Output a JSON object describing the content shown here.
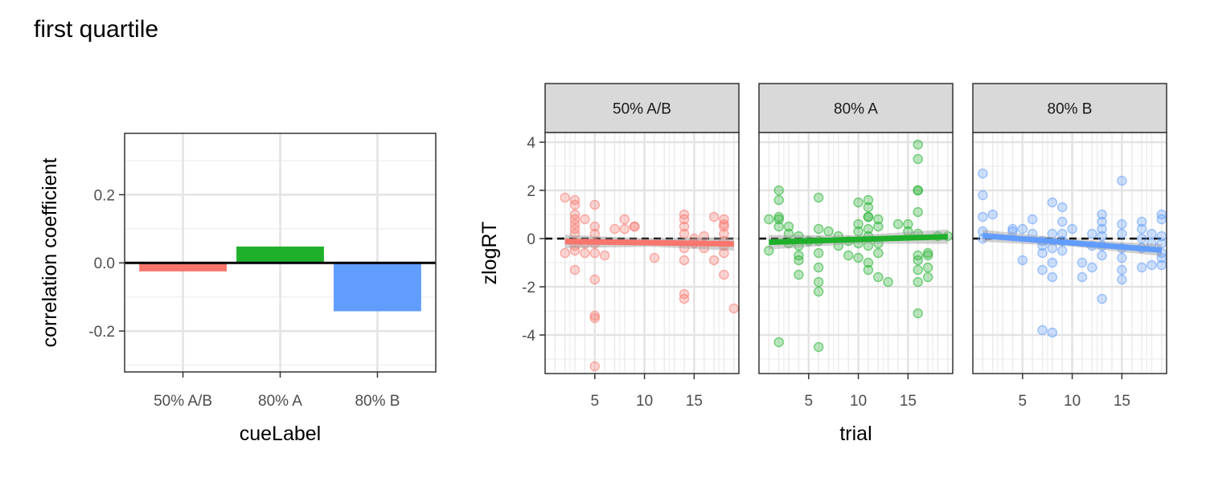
{
  "figure": {
    "title": "first quartile"
  },
  "colors": {
    "red": "#F8766D",
    "green": "#1FB02B",
    "blue": "#619CFF"
  },
  "chart_data": [
    {
      "type": "bar",
      "title": "",
      "xlabel": "cueLabel",
      "ylabel": "correlation coefficient",
      "categories": [
        "50% A/B",
        "80% A",
        "80% B"
      ],
      "values": [
        -0.025,
        0.048,
        -0.142
      ],
      "ylim": [
        -0.32,
        0.38
      ],
      "yticks": [
        -0.2,
        0.0,
        0.2
      ],
      "ytick_labels": [
        "-0.2",
        "0.0",
        "0.2"
      ],
      "grid": true,
      "legend": "none",
      "zero_line": true
    },
    {
      "type": "scatter",
      "xlabel": "trial",
      "ylabel": "zlogRT",
      "xlim": [
        0,
        19.5
      ],
      "ylim": [
        -5.6,
        4.4
      ],
      "xticks": [
        5,
        10,
        15
      ],
      "yticks": [
        -4,
        -2,
        0,
        2,
        4
      ],
      "reference_line_y": 0,
      "grid": true,
      "legend": "none",
      "panels": [
        {
          "label": "50% A/B",
          "fit": {
            "x": [
              2,
              19
            ],
            "y": [
              -0.12,
              -0.22
            ],
            "band": 0.28
          },
          "points": [
            [
              2,
              1.7
            ],
            [
              2,
              -0.6
            ],
            [
              3,
              1.6
            ],
            [
              3,
              1.4
            ],
            [
              3,
              1.0
            ],
            [
              3,
              0.8
            ],
            [
              3,
              0.6
            ],
            [
              3,
              0.4
            ],
            [
              3,
              0.2
            ],
            [
              3,
              -0.3
            ],
            [
              3,
              -0.5
            ],
            [
              3,
              -1.3
            ],
            [
              4,
              0.8
            ],
            [
              4,
              -0.2
            ],
            [
              4,
              -0.6
            ],
            [
              5,
              1.4
            ],
            [
              5,
              0.5
            ],
            [
              5,
              0.2
            ],
            [
              5,
              -0.2
            ],
            [
              5,
              -0.6
            ],
            [
              5,
              -1.7
            ],
            [
              5,
              -3.2
            ],
            [
              5,
              -3.3
            ],
            [
              5,
              -5.3
            ],
            [
              6,
              -0.7
            ],
            [
              7,
              0.4
            ],
            [
              8,
              0.8
            ],
            [
              8,
              0.4
            ],
            [
              9,
              0.5
            ],
            [
              9,
              0.5
            ],
            [
              11,
              -0.8
            ],
            [
              14,
              1.0
            ],
            [
              14,
              0.8
            ],
            [
              14,
              0.5
            ],
            [
              14,
              0.2
            ],
            [
              14,
              -0.4
            ],
            [
              14,
              -0.9
            ],
            [
              14,
              -2.3
            ],
            [
              14,
              -2.5
            ],
            [
              15,
              0.0
            ],
            [
              15,
              -0.2
            ],
            [
              16,
              0.1
            ],
            [
              16,
              -0.4
            ],
            [
              17,
              0.9
            ],
            [
              17,
              -0.9
            ],
            [
              18,
              0.8
            ],
            [
              18,
              0.6
            ],
            [
              18,
              0.5
            ],
            [
              18,
              0.2
            ],
            [
              18,
              -0.1
            ],
            [
              18,
              -0.3
            ],
            [
              18,
              -0.6
            ],
            [
              18,
              -1.5
            ],
            [
              19,
              -2.9
            ]
          ]
        },
        {
          "label": "80% A",
          "fit": {
            "x": [
              1,
              19
            ],
            "y": [
              -0.15,
              0.08
            ],
            "band": 0.3
          },
          "points": [
            [
              1,
              0.8
            ],
            [
              1,
              -0.5
            ],
            [
              2,
              2.0
            ],
            [
              2,
              1.6
            ],
            [
              2,
              0.9
            ],
            [
              2,
              0.8
            ],
            [
              2,
              0.5
            ],
            [
              2,
              -4.3
            ],
            [
              3,
              0.5
            ],
            [
              3,
              0.2
            ],
            [
              3,
              -0.2
            ],
            [
              4,
              0.1
            ],
            [
              4,
              -0.3
            ],
            [
              4,
              -0.7
            ],
            [
              4,
              -0.9
            ],
            [
              4,
              -1.5
            ],
            [
              5,
              -0.1
            ],
            [
              6,
              1.7
            ],
            [
              6,
              0.4
            ],
            [
              6,
              -0.1
            ],
            [
              6,
              -0.6
            ],
            [
              6,
              -1.2
            ],
            [
              6,
              -1.8
            ],
            [
              6,
              -2.2
            ],
            [
              6,
              -4.5
            ],
            [
              7,
              0.3
            ],
            [
              8,
              0.1
            ],
            [
              8,
              -0.3
            ],
            [
              9,
              -0.1
            ],
            [
              9,
              -0.7
            ],
            [
              10,
              1.5
            ],
            [
              10,
              0.6
            ],
            [
              10,
              0.3
            ],
            [
              10,
              -0.2
            ],
            [
              10,
              -0.8
            ],
            [
              11,
              1.6
            ],
            [
              11,
              1.3
            ],
            [
              11,
              0.9
            ],
            [
              11,
              0.9
            ],
            [
              11,
              0.4
            ],
            [
              11,
              0.1
            ],
            [
              11,
              -0.3
            ],
            [
              11,
              -1.0
            ],
            [
              11,
              -1.3
            ],
            [
              12,
              0.8
            ],
            [
              12,
              0.5
            ],
            [
              12,
              -0.2
            ],
            [
              12,
              -0.6
            ],
            [
              12,
              -1.6
            ],
            [
              13,
              -1.8
            ],
            [
              14,
              0.6
            ],
            [
              15,
              0.6
            ],
            [
              15,
              0.3
            ],
            [
              16,
              3.9
            ],
            [
              16,
              3.3
            ],
            [
              16,
              2.0
            ],
            [
              16,
              2.0
            ],
            [
              16,
              1.1
            ],
            [
              16,
              0.2
            ],
            [
              16,
              -0.7
            ],
            [
              16,
              -0.9
            ],
            [
              16,
              -1.3
            ],
            [
              16,
              -1.8
            ],
            [
              16,
              -3.1
            ],
            [
              17,
              -0.6
            ],
            [
              17,
              -0.7
            ],
            [
              17,
              -1.2
            ],
            [
              17,
              -1.6
            ],
            [
              18,
              0.1
            ],
            [
              19,
              0.1
            ]
          ]
        },
        {
          "label": "80% B",
          "fit": {
            "x": [
              1,
              19
            ],
            "y": [
              0.12,
              -0.48
            ],
            "band": 0.25
          },
          "points": [
            [
              1,
              2.7
            ],
            [
              1,
              1.8
            ],
            [
              1,
              0.9
            ],
            [
              1,
              0.3
            ],
            [
              1,
              0.0
            ],
            [
              2,
              1.0
            ],
            [
              4,
              0.4
            ],
            [
              4,
              0.3
            ],
            [
              5,
              -0.9
            ],
            [
              5,
              0.4
            ],
            [
              6,
              0.8
            ],
            [
              6,
              0.2
            ],
            [
              7,
              -0.1
            ],
            [
              7,
              -0.3
            ],
            [
              7,
              -0.6
            ],
            [
              7,
              -1.3
            ],
            [
              7,
              -3.8
            ],
            [
              8,
              1.5
            ],
            [
              8,
              0.2
            ],
            [
              8,
              -0.4
            ],
            [
              8,
              -1.0
            ],
            [
              8,
              -1.6
            ],
            [
              8,
              -3.9
            ],
            [
              9,
              1.3
            ],
            [
              9,
              0.7
            ],
            [
              9,
              0.2
            ],
            [
              9,
              -0.1
            ],
            [
              9,
              -0.5
            ],
            [
              10,
              0.4
            ],
            [
              11,
              -1.0
            ],
            [
              11,
              -1.6
            ],
            [
              12,
              0.2
            ],
            [
              12,
              -0.3
            ],
            [
              12,
              -1.2
            ],
            [
              13,
              1.0
            ],
            [
              13,
              0.7
            ],
            [
              13,
              0.4
            ],
            [
              13,
              0.1
            ],
            [
              13,
              -0.3
            ],
            [
              13,
              -0.7
            ],
            [
              13,
              -2.5
            ],
            [
              15,
              2.4
            ],
            [
              15,
              0.6
            ],
            [
              15,
              0.2
            ],
            [
              15,
              -0.4
            ],
            [
              15,
              -0.8
            ],
            [
              15,
              -1.3
            ],
            [
              15,
              -1.7
            ],
            [
              17,
              0.7
            ],
            [
              17,
              0.4
            ],
            [
              17,
              0.0
            ],
            [
              17,
              -0.4
            ],
            [
              17,
              -1.2
            ],
            [
              18,
              0.2
            ],
            [
              18,
              -0.2
            ],
            [
              18,
              -1.1
            ],
            [
              19,
              1.0
            ],
            [
              19,
              0.8
            ],
            [
              19,
              0.1
            ],
            [
              19,
              -0.2
            ],
            [
              19,
              -0.6
            ],
            [
              19,
              -0.8
            ],
            [
              19,
              -1.1
            ]
          ]
        }
      ]
    }
  ]
}
